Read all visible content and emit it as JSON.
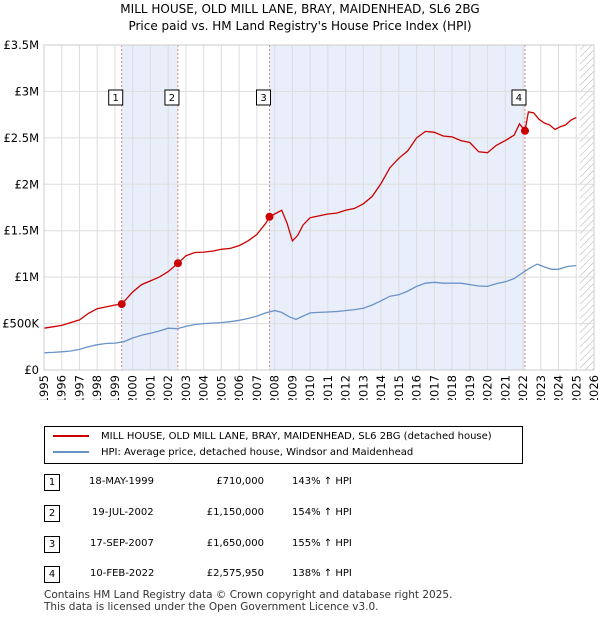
{
  "chart_data": {
    "type": "line",
    "title": "MILL HOUSE, OLD MILL LANE, BRAY, MAIDENHEAD, SL6 2BG",
    "subtitle": "Price paid vs. HM Land Registry's House Price Index (HPI)",
    "xlabel": "",
    "ylabel": "",
    "xlim": [
      1995,
      2026
    ],
    "ylim": [
      0,
      3500000
    ],
    "x_ticks": [
      "1995",
      "1996",
      "1997",
      "1998",
      "1999",
      "2000",
      "2001",
      "2002",
      "2003",
      "2004",
      "2005",
      "2006",
      "2007",
      "2008",
      "2009",
      "2010",
      "2011",
      "2012",
      "2013",
      "2014",
      "2015",
      "2016",
      "2017",
      "2018",
      "2019",
      "2020",
      "2021",
      "2022",
      "2023",
      "2024",
      "2025",
      "2026"
    ],
    "y_ticks": [
      {
        "value": 0,
        "label": "£0"
      },
      {
        "value": 500000,
        "label": "£500K"
      },
      {
        "value": 1000000,
        "label": "£1M"
      },
      {
        "value": 1500000,
        "label": "£1.5M"
      },
      {
        "value": 2000000,
        "label": "£2M"
      },
      {
        "value": 2500000,
        "label": "£2.5M"
      },
      {
        "value": 3000000,
        "label": "£3M"
      },
      {
        "value": 3500000,
        "label": "£3.5M"
      }
    ],
    "grid": true,
    "shaded_periods": [
      [
        1999.38,
        2002.55
      ],
      [
        2007.71,
        2022.11
      ]
    ],
    "future_hatch_from": 2025.2,
    "series": [
      {
        "name": "MILL HOUSE, OLD MILL LANE, BRAY, MAIDENHEAD, SL6 2BG (detached house)",
        "color": "#cc0000",
        "x": [
          1995.0,
          1995.5,
          1996.0,
          1996.5,
          1997.0,
          1997.5,
          1998.0,
          1998.5,
          1999.0,
          1999.38,
          2000.0,
          2000.5,
          2001.0,
          2001.5,
          2002.0,
          2002.55,
          2003.0,
          2003.5,
          2004.0,
          2004.5,
          2005.0,
          2005.5,
          2006.0,
          2006.5,
          2007.0,
          2007.5,
          2007.71,
          2008.0,
          2008.4,
          2008.7,
          2009.0,
          2009.3,
          2009.6,
          2010.0,
          2010.5,
          2011.0,
          2011.5,
          2012.0,
          2012.5,
          2013.0,
          2013.5,
          2014.0,
          2014.5,
          2015.0,
          2015.5,
          2016.0,
          2016.5,
          2017.0,
          2017.5,
          2018.0,
          2018.5,
          2019.0,
          2019.5,
          2020.0,
          2020.5,
          2021.0,
          2021.5,
          2021.8,
          2022.11,
          2022.3,
          2022.6,
          2022.9,
          2023.2,
          2023.5,
          2023.8,
          2024.1,
          2024.4,
          2024.7,
          2025.0
        ],
        "y": [
          450000,
          465000,
          480000,
          510000,
          540000,
          610000,
          660000,
          680000,
          700000,
          710000,
          840000,
          920000,
          960000,
          1000000,
          1060000,
          1150000,
          1230000,
          1265000,
          1270000,
          1280000,
          1300000,
          1310000,
          1340000,
          1390000,
          1460000,
          1580000,
          1650000,
          1680000,
          1720000,
          1580000,
          1390000,
          1450000,
          1560000,
          1640000,
          1660000,
          1680000,
          1690000,
          1720000,
          1740000,
          1790000,
          1870000,
          2010000,
          2180000,
          2280000,
          2360000,
          2500000,
          2570000,
          2560000,
          2520000,
          2510000,
          2470000,
          2450000,
          2350000,
          2340000,
          2420000,
          2470000,
          2530000,
          2650000,
          2575950,
          2780000,
          2770000,
          2700000,
          2660000,
          2640000,
          2590000,
          2620000,
          2640000,
          2690000,
          2720000
        ]
      },
      {
        "name": "HPI: Average price, detached house, Windsor and Maidenhead",
        "color": "#6a93c8",
        "x": [
          1995.0,
          1995.5,
          1996.0,
          1996.5,
          1997.0,
          1997.5,
          1998.0,
          1998.5,
          1999.0,
          1999.5,
          2000.0,
          2000.5,
          2001.0,
          2001.5,
          2002.0,
          2002.5,
          2003.0,
          2003.5,
          2004.0,
          2004.5,
          2005.0,
          2005.5,
          2006.0,
          2006.5,
          2007.0,
          2007.5,
          2008.0,
          2008.4,
          2008.8,
          2009.2,
          2009.6,
          2010.0,
          2010.5,
          2011.0,
          2011.5,
          2012.0,
          2012.5,
          2013.0,
          2013.5,
          2014.0,
          2014.5,
          2015.0,
          2015.5,
          2016.0,
          2016.5,
          2017.0,
          2017.5,
          2018.0,
          2018.5,
          2019.0,
          2019.5,
          2020.0,
          2020.5,
          2021.0,
          2021.5,
          2022.0,
          2022.4,
          2022.8,
          2023.2,
          2023.6,
          2024.0,
          2024.5,
          2025.0
        ],
        "y": [
          185000,
          190000,
          196000,
          205000,
          222000,
          250000,
          272000,
          285000,
          290000,
          305000,
          345000,
          375000,
          395000,
          420000,
          450000,
          445000,
          470000,
          490000,
          500000,
          505000,
          510000,
          520000,
          535000,
          555000,
          580000,
          615000,
          640000,
          620000,
          575000,
          545000,
          580000,
          615000,
          620000,
          625000,
          630000,
          640000,
          650000,
          665000,
          700000,
          745000,
          795000,
          810000,
          850000,
          900000,
          935000,
          945000,
          935000,
          935000,
          935000,
          920000,
          905000,
          900000,
          930000,
          950000,
          985000,
          1050000,
          1100000,
          1140000,
          1110000,
          1085000,
          1085000,
          1115000,
          1125000
        ]
      }
    ],
    "markers": [
      {
        "label": "1",
        "x": 1999.38,
        "y": 710000
      },
      {
        "label": "2",
        "x": 2002.55,
        "y": 1150000
      },
      {
        "label": "3",
        "x": 2007.71,
        "y": 1650000
      },
      {
        "label": "4",
        "x": 2022.11,
        "y": 2575950
      }
    ]
  },
  "legend": {
    "red_label": "MILL HOUSE, OLD MILL LANE, BRAY, MAIDENHEAD, SL6 2BG (detached house)",
    "blue_label": "HPI: Average price, detached house, Windsor and Maidenhead"
  },
  "sales": [
    {
      "num": "1",
      "date": "18-MAY-1999",
      "price": "£710,000",
      "hpi": "143% ↑ HPI"
    },
    {
      "num": "2",
      "date": "19-JUL-2002",
      "price": "£1,150,000",
      "hpi": "154% ↑ HPI"
    },
    {
      "num": "3",
      "date": "17-SEP-2007",
      "price": "£1,650,000",
      "hpi": "155% ↑ HPI"
    },
    {
      "num": "4",
      "date": "10-FEB-2022",
      "price": "£2,575,950",
      "hpi": "138% ↑ HPI"
    }
  ],
  "footer": {
    "line1": "Contains HM Land Registry data © Crown copyright and database right 2025.",
    "line2": "This data is licensed under the Open Government Licence v3.0."
  }
}
